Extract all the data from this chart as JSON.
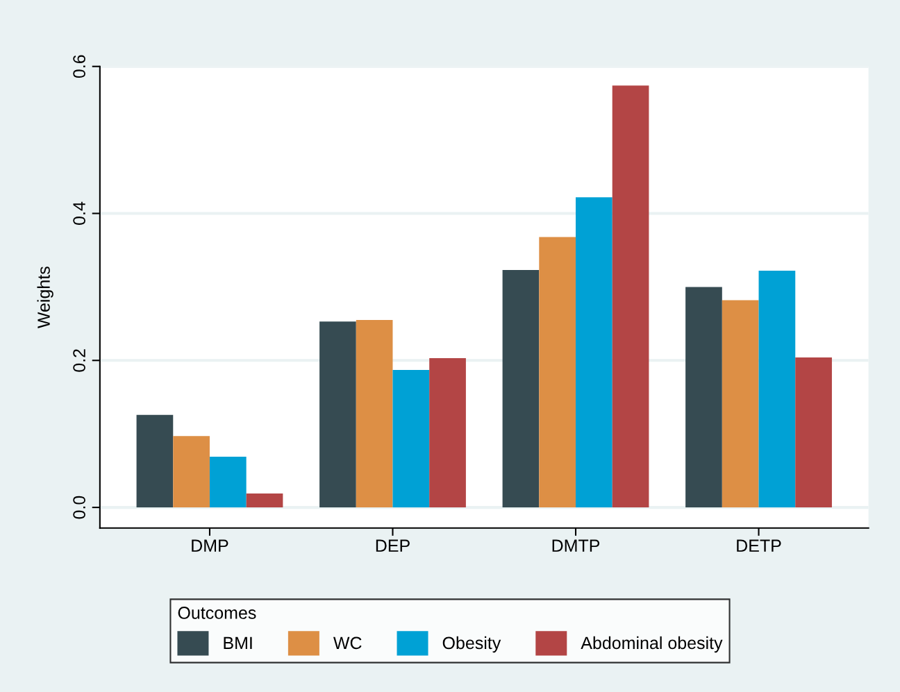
{
  "chart_data": {
    "type": "bar",
    "ylabel": "Weights",
    "legend_title": "Outcomes",
    "categories": [
      "DMP",
      "DEP",
      "DMTP",
      "DETP"
    ],
    "series": [
      {
        "name": "BMI",
        "color": "#364b52",
        "values": [
          0.126,
          0.253,
          0.323,
          0.3
        ]
      },
      {
        "name": "WC",
        "color": "#dd8f45",
        "values": [
          0.097,
          0.255,
          0.368,
          0.282
        ]
      },
      {
        "name": "Obesity",
        "color": "#00a1d5",
        "values": [
          0.069,
          0.187,
          0.422,
          0.322
        ]
      },
      {
        "name": "Abdominal obesity",
        "color": "#b34545",
        "values": [
          0.019,
          0.203,
          0.574,
          0.204
        ]
      }
    ],
    "ylim": [
      -0.028,
      0.6
    ],
    "yticks": [
      {
        "value": 0,
        "label": "0.0"
      },
      {
        "value": 0.2,
        "label": "0.2"
      },
      {
        "value": 0.4,
        "label": "0.4"
      },
      {
        "value": 0.6,
        "label": "0.6"
      }
    ],
    "grid": "y",
    "legend": "bottom"
  }
}
